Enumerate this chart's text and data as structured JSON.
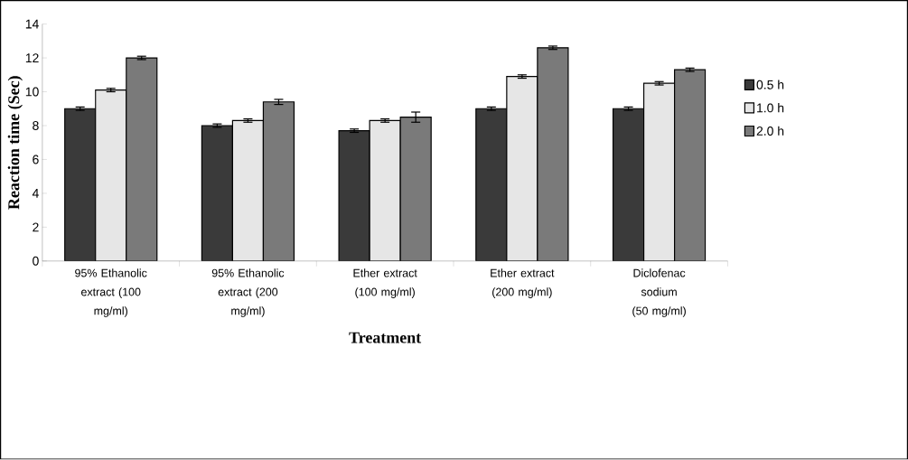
{
  "chart_data": {
    "type": "bar",
    "xlabel": "Treatment",
    "ylabel": "Reaction time (Sec)",
    "categories": [
      "95% Ethanolic extract (100 mg/ml)",
      "95% Ethanolic extract (200 mg/ml)",
      "Ether extract (100 mg/ml)",
      "Ether extract (200 mg/ml)",
      "Diclofenac sodium (50 mg/ml)"
    ],
    "series": [
      {
        "name": "0.5 h",
        "color": "#3a3a3a",
        "values": [
          9.0,
          8.0,
          7.7,
          9.0,
          9.0
        ],
        "errors": [
          0.1,
          0.1,
          0.1,
          0.1,
          0.1
        ]
      },
      {
        "name": "1.0 h",
        "color": "#e6e6e6",
        "values": [
          10.1,
          8.3,
          8.3,
          10.9,
          10.5
        ],
        "errors": [
          0.1,
          0.1,
          0.1,
          0.1,
          0.1
        ]
      },
      {
        "name": "2.0 h",
        "color": "#7a7a7a",
        "values": [
          12.0,
          9.4,
          8.5,
          12.6,
          11.3
        ],
        "errors": [
          0.1,
          0.15,
          0.3,
          0.1,
          0.1
        ]
      }
    ],
    "ylim": [
      0,
      14
    ],
    "yticks": [
      0,
      2,
      4,
      6,
      8,
      10,
      12,
      14
    ],
    "grid": false,
    "legend": "right"
  }
}
